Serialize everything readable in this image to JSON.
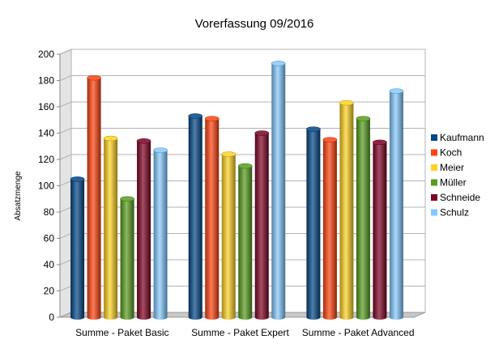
{
  "chart_data": {
    "type": "bar",
    "title": "Vorerfassung 09/2016",
    "ylabel": "Absatzmenge",
    "xlabel": "",
    "ylim": [
      0,
      200
    ],
    "yticks": [
      0,
      20,
      40,
      60,
      80,
      100,
      120,
      140,
      160,
      180,
      200
    ],
    "grid": true,
    "legend_position": "right",
    "categories": [
      "Summe - Paket Basic",
      "Summe - Paket Expert",
      "Summe - Paket Advanced"
    ],
    "series": [
      {
        "name": "Kaufmann",
        "color": "#004586",
        "values": [
          105,
          153,
          143
        ]
      },
      {
        "name": "Koch",
        "color": "#ff420e",
        "values": [
          182,
          151,
          135
        ]
      },
      {
        "name": "Meier",
        "color": "#ffd320",
        "values": [
          136,
          124,
          163
        ]
      },
      {
        "name": "Müller",
        "color": "#579d1c",
        "values": [
          90,
          115,
          151
        ]
      },
      {
        "name": "Schneide",
        "color": "#7e0021",
        "values": [
          134,
          140,
          133
        ]
      },
      {
        "name": "Schulz",
        "color": "#83caff",
        "values": [
          127,
          193,
          172
        ]
      }
    ]
  }
}
